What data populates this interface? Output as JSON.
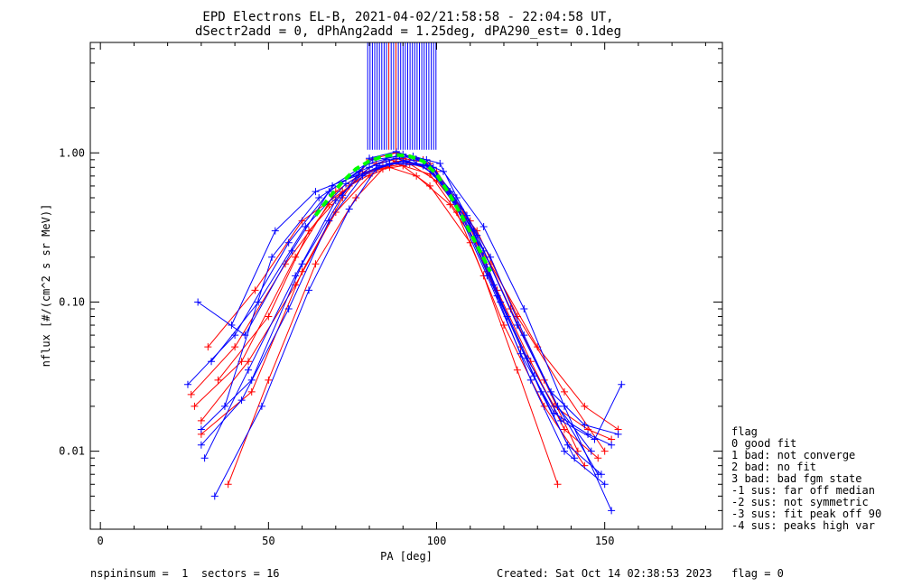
{
  "chart_data": {
    "type": "line",
    "title": "EPD Electrons EL-B, 2021-04-02/21:58:58 - 22:04:58 UT,",
    "subtitle": "dSectr2add = 0, dPhAng2add = 1.25deg, dPA290_est=   0.1deg",
    "xlabel": "PA [deg]",
    "ylabel": "nflux [#/(cm^2 s sr MeV)]",
    "xlim": [
      -3,
      185
    ],
    "ylim": [
      0.003,
      5.5
    ],
    "yscale": "log",
    "x_ticks": [
      "0",
      "50",
      "100",
      "150"
    ],
    "x_tick_values": [
      0,
      50,
      100,
      150
    ],
    "y_ticks": [
      "0.01",
      "0.10",
      "1.00"
    ],
    "y_tick_values": [
      0.01,
      0.1,
      1.0
    ],
    "grid": false,
    "colors": {
      "series_red": "#ff0000",
      "series_blue": "#0000ff",
      "fit": "#00ff00",
      "axes": "#000000"
    },
    "series": [
      {
        "color": "red",
        "curves": [
          {
            "x": [
              30,
              45,
              60,
              72,
              80,
              88,
              96,
              105,
              115,
              125,
              135,
              145,
              152
            ],
            "y": [
              0.013,
              0.025,
              0.16,
              0.5,
              0.9,
              1.0,
              0.9,
              0.5,
              0.16,
              0.05,
              0.02,
              0.014,
              0.012
            ]
          },
          {
            "x": [
              28,
              42,
              58,
              70,
              82,
              90,
              98,
              108,
              118,
              128,
              138,
              148
            ],
            "y": [
              0.02,
              0.04,
              0.2,
              0.55,
              0.85,
              0.92,
              0.85,
              0.4,
              0.12,
              0.04,
              0.014,
              0.009
            ]
          },
          {
            "x": [
              35,
              50,
              62,
              74,
              84,
              92,
              100,
              110,
              122,
              132,
              142
            ],
            "y": [
              0.03,
              0.08,
              0.3,
              0.6,
              0.8,
              0.85,
              0.75,
              0.35,
              0.09,
              0.03,
              0.01
            ]
          },
          {
            "x": [
              32,
              46,
              60,
              72,
              80,
              86,
              94,
              104,
              116,
              130,
              144,
              154
            ],
            "y": [
              0.05,
              0.12,
              0.35,
              0.55,
              0.75,
              0.8,
              0.7,
              0.45,
              0.18,
              0.05,
              0.02,
              0.014
            ]
          },
          {
            "x": [
              38,
              50,
              64,
              76,
              84,
              90,
              98,
              106,
              114,
              124,
              136
            ],
            "y": [
              0.006,
              0.03,
              0.18,
              0.5,
              0.78,
              0.82,
              0.72,
              0.4,
              0.15,
              0.035,
              0.006
            ]
          },
          {
            "x": [
              30,
              44,
              58,
              70,
              80,
              90,
              100,
              112,
              124,
              138,
              150
            ],
            "y": [
              0.016,
              0.04,
              0.13,
              0.4,
              0.7,
              0.9,
              0.65,
              0.3,
              0.08,
              0.025,
              0.01
            ]
          },
          {
            "x": [
              27,
              40,
              55,
              68,
              78,
              88,
              98,
              110,
              120,
              132,
              144
            ],
            "y": [
              0.024,
              0.05,
              0.18,
              0.45,
              0.72,
              0.88,
              0.6,
              0.25,
              0.07,
              0.02,
              0.008
            ]
          }
        ]
      },
      {
        "color": "blue",
        "curves": [
          {
            "x": [
              30,
              45,
              60,
              72,
              80,
              88,
              96,
              105,
              115,
              125,
              135,
              145,
              152
            ],
            "y": [
              0.014,
              0.03,
              0.18,
              0.52,
              0.92,
              1.02,
              0.88,
              0.48,
              0.15,
              0.045,
              0.018,
              0.013,
              0.011
            ]
          },
          {
            "x": [
              29,
              43,
              57,
              69,
              81,
              89,
              97,
              107,
              117,
              127,
              137,
              147,
              155
            ],
            "y": [
              0.1,
              0.06,
              0.22,
              0.6,
              0.9,
              0.95,
              0.9,
              0.42,
              0.13,
              0.042,
              0.016,
              0.012,
              0.028
            ]
          },
          {
            "x": [
              33,
              47,
              61,
              73,
              83,
              91,
              99,
              109,
              119,
              129,
              139,
              149
            ],
            "y": [
              0.04,
              0.1,
              0.32,
              0.62,
              0.82,
              0.86,
              0.8,
              0.38,
              0.1,
              0.032,
              0.011,
              0.007
            ]
          },
          {
            "x": [
              37,
              51,
              65,
              77,
              85,
              93,
              101,
              111,
              121,
              131,
              141
            ],
            "y": [
              0.02,
              0.2,
              0.5,
              0.75,
              0.9,
              0.95,
              0.85,
              0.3,
              0.08,
              0.025,
              0.009
            ]
          },
          {
            "x": [
              31,
              44,
              58,
              70,
              80,
              88,
              98,
              108,
              118,
              128,
              138,
              150
            ],
            "y": [
              0.009,
              0.035,
              0.15,
              0.48,
              0.8,
              0.92,
              0.8,
              0.36,
              0.11,
              0.03,
              0.01,
              0.006
            ]
          },
          {
            "x": [
              34,
              48,
              62,
              74,
              82,
              90,
              98,
              106,
              116,
              126,
              136,
              146
            ],
            "y": [
              0.005,
              0.02,
              0.12,
              0.42,
              0.78,
              0.88,
              0.82,
              0.5,
              0.2,
              0.06,
              0.02,
              0.01
            ]
          },
          {
            "x": [
              26,
              40,
              56,
              68,
              80,
              90,
              100,
              112,
              124,
              136,
              148
            ],
            "y": [
              0.028,
              0.06,
              0.25,
              0.55,
              0.85,
              0.98,
              0.7,
              0.28,
              0.07,
              0.02,
              0.007
            ]
          },
          {
            "x": [
              39,
              52,
              64,
              76,
              86,
              94,
              102,
              114,
              126,
              138,
              152
            ],
            "y": [
              0.07,
              0.3,
              0.55,
              0.7,
              0.85,
              0.9,
              0.75,
              0.32,
              0.09,
              0.02,
              0.004
            ]
          },
          {
            "x": [
              30,
              42,
              56,
              68,
              78,
              86,
              96,
              104,
              114,
              124,
              134,
              144,
              154
            ],
            "y": [
              0.011,
              0.022,
              0.09,
              0.35,
              0.7,
              0.85,
              0.82,
              0.55,
              0.22,
              0.07,
              0.025,
              0.015,
              0.013
            ]
          }
        ]
      }
    ],
    "fit_curve": {
      "color": "green",
      "style": "dashed",
      "x": [
        64,
        68,
        72,
        76,
        80,
        84,
        88,
        92,
        96,
        100,
        104,
        108,
        112,
        116
      ],
      "y": [
        0.38,
        0.5,
        0.64,
        0.78,
        0.88,
        0.95,
        0.97,
        0.95,
        0.88,
        0.72,
        0.52,
        0.36,
        0.24,
        0.16
      ]
    },
    "legend": {
      "title": "flag",
      "placement": "right",
      "entries": [
        " 0 good fit",
        " 1 bad: not converge",
        " 2 bad: no fit",
        " 3 bad: bad fgm state",
        "-1 sus: far off median",
        "-2 sus: not symmetric",
        "-3 sus: fit peak off 90",
        "-4 sus: peaks high var"
      ]
    },
    "footer": {
      "left": "nspininsum =  1  sectors = 16",
      "right": "Created: Sat Oct 14 02:38:53 2023   flag = 0"
    }
  }
}
